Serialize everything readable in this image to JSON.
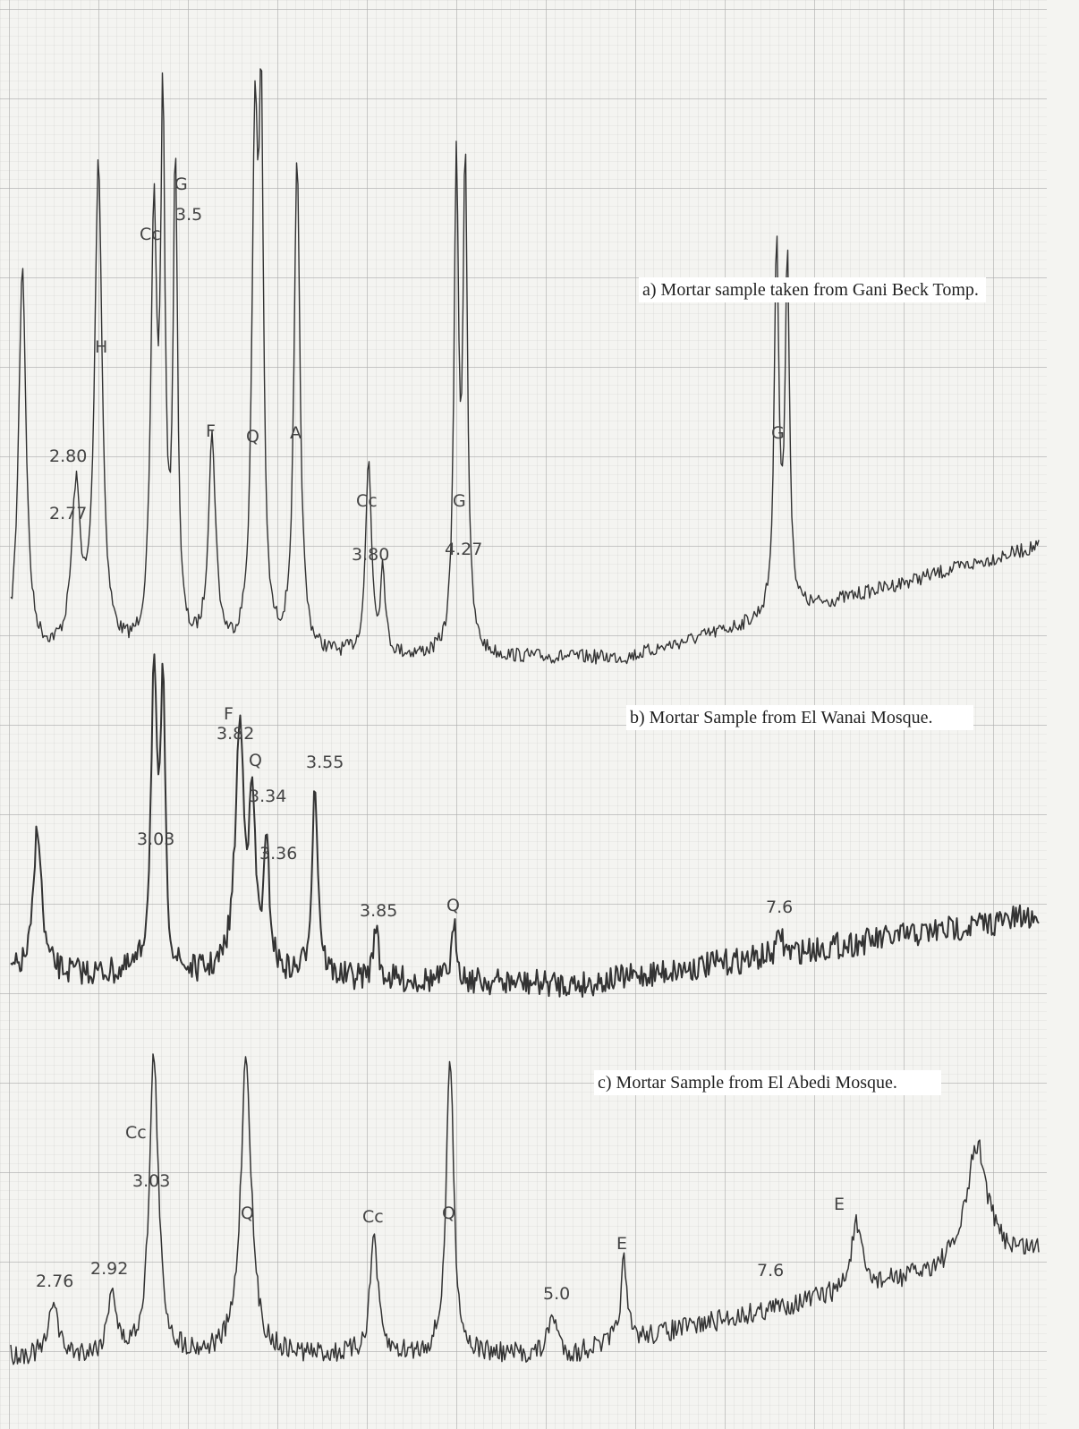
{
  "panels": [
    {
      "caption": "a) Mortar sample taken from Gani Beck Tomp.",
      "labels": [
        "G",
        "3.5",
        "Cc",
        "H",
        "2.80",
        "2.77",
        "F",
        "Q",
        "A",
        "Cc",
        "3.80",
        "G",
        "4.27",
        "G"
      ]
    },
    {
      "caption": "b) Mortar Sample from El Wanai Mosque.",
      "labels": [
        "F",
        "3.82",
        "Q",
        "3.55",
        "3.34",
        "3.03",
        "3.36",
        "3.85",
        "Q",
        "7.6"
      ]
    },
    {
      "caption": "c) Mortar Sample from El Abedi Mosque.",
      "labels": [
        "Cc",
        "3.03",
        "Q",
        "Cc",
        "Q",
        "E",
        "E",
        "7.6",
        "5.0",
        "2.76",
        "2.92"
      ]
    }
  ]
}
